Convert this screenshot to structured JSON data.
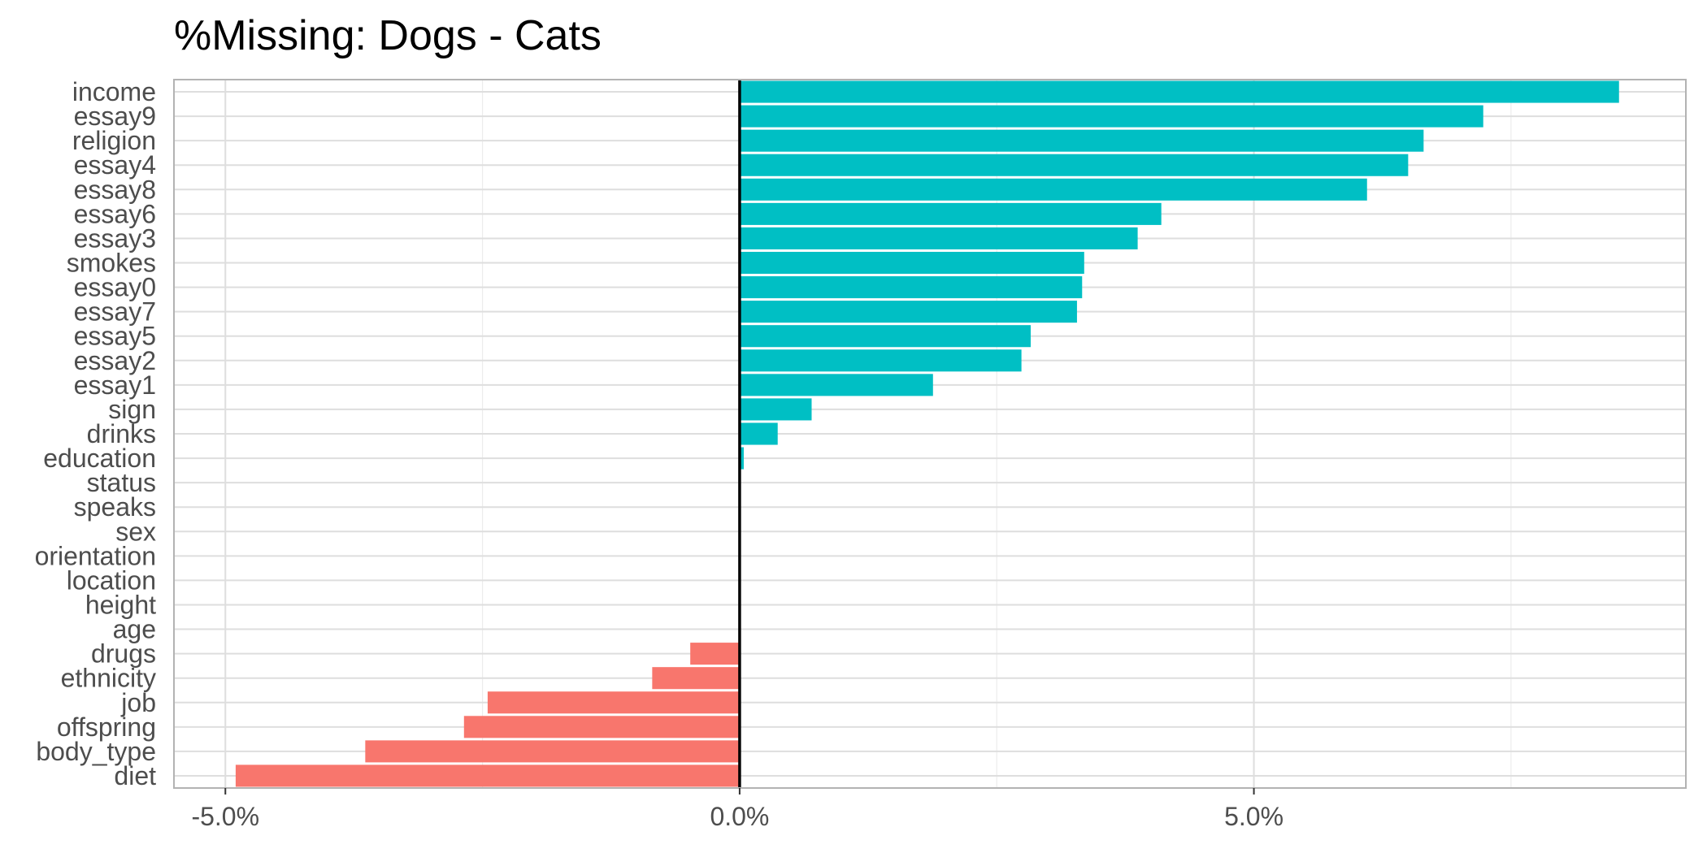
{
  "chart_data": {
    "type": "bar",
    "orientation": "horizontal",
    "title": "%Missing: Dogs - Cats",
    "xlabel": "",
    "ylabel": "",
    "xlim": [
      -5.5,
      9.2
    ],
    "x_ticks": [
      -5,
      0,
      5
    ],
    "x_tick_labels": [
      "-5.0%",
      "0.0%",
      "5.0%"
    ],
    "grid": true,
    "legend": "none",
    "colors": {
      "positive": "#00BFC4",
      "negative": "#F8766D",
      "zero_line": "#000000"
    },
    "categories": [
      "income",
      "essay9",
      "religion",
      "essay4",
      "essay8",
      "essay6",
      "essay3",
      "smokes",
      "essay0",
      "essay7",
      "essay5",
      "essay2",
      "essay1",
      "sign",
      "drinks",
      "education",
      "status",
      "speaks",
      "sex",
      "orientation",
      "location",
      "height",
      "age",
      "drugs",
      "ethnicity",
      "job",
      "offspring",
      "body_type",
      "diet"
    ],
    "values": [
      8.55,
      7.23,
      6.65,
      6.5,
      6.1,
      4.1,
      3.87,
      3.35,
      3.33,
      3.28,
      2.83,
      2.74,
      1.88,
      0.7,
      0.37,
      0.04,
      0,
      0,
      0,
      0,
      0,
      0,
      0,
      -0.48,
      -0.85,
      -2.45,
      -2.68,
      -3.64,
      -4.9
    ]
  }
}
